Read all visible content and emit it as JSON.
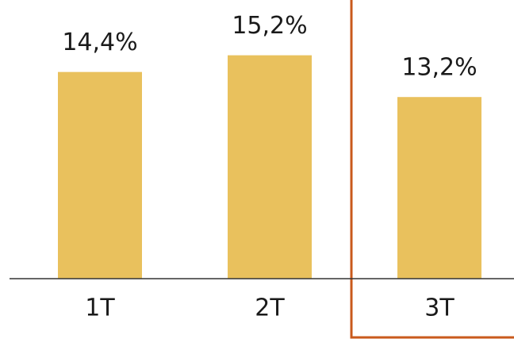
{
  "chart_data": {
    "type": "bar",
    "categories": [
      "1T",
      "2T",
      "3T"
    ],
    "values": [
      14.4,
      15.2,
      13.2
    ],
    "value_labels": [
      "14,4%",
      "15,2%",
      "13,2%"
    ],
    "color": "#e9c15d",
    "ylim": [
      4.5,
      18
    ]
  }
}
